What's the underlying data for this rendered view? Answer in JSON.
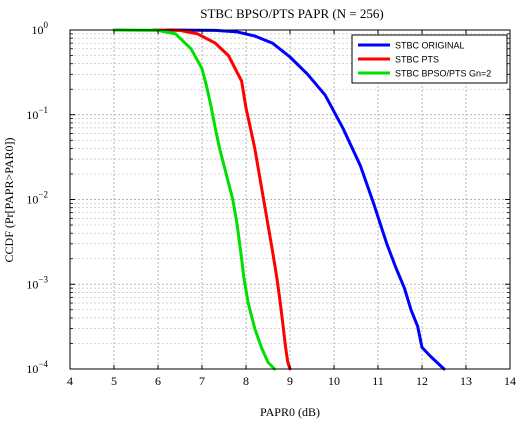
{
  "chart_data": {
    "type": "line",
    "title": "STBC BPSO/PTS PAPR (N = 256)",
    "xlabel": "PAPR0 (dB)",
    "ylabel": "CCDF (Pr[PAPR>PAR0])",
    "xlim": [
      4,
      14
    ],
    "ylim": [
      0.0001,
      1
    ],
    "yscale": "log",
    "grid": "major-and-minor, dashed",
    "legend_position": "top-right",
    "x_ticks": [
      "4",
      "5",
      "6",
      "7",
      "8",
      "9",
      "10",
      "11",
      "12",
      "13",
      "14"
    ],
    "y_ticks": [
      {
        "base": "10",
        "exp": "0",
        "value": 1
      },
      {
        "base": "10",
        "exp": "−1",
        "value": 0.1
      },
      {
        "base": "10",
        "exp": "−2",
        "value": 0.01
      },
      {
        "base": "10",
        "exp": "−3",
        "value": 0.001
      },
      {
        "base": "10",
        "exp": "−4",
        "value": 0.0001
      }
    ],
    "series": [
      {
        "name": "STBC ORIGINAL",
        "color": "#0000ff",
        "points": [
          [
            6.2,
            1
          ],
          [
            7.3,
            0.99
          ],
          [
            7.8,
            0.95
          ],
          [
            8.2,
            0.85
          ],
          [
            8.6,
            0.7
          ],
          [
            9.0,
            0.48
          ],
          [
            9.4,
            0.3
          ],
          [
            9.8,
            0.17
          ],
          [
            10.2,
            0.07
          ],
          [
            10.6,
            0.025
          ],
          [
            10.9,
            0.009
          ],
          [
            11.2,
            0.003
          ],
          [
            11.4,
            0.0016
          ],
          [
            11.6,
            0.0009
          ],
          [
            11.75,
            0.0005
          ],
          [
            11.9,
            0.00032
          ],
          [
            12.0,
            0.00018
          ],
          [
            12.2,
            0.00014
          ],
          [
            12.5,
            0.0001
          ]
        ]
      },
      {
        "name": "STBC PTS",
        "color": "#ff0000",
        "points": [
          [
            5.9,
            1
          ],
          [
            6.5,
            0.99
          ],
          [
            6.9,
            0.9
          ],
          [
            7.3,
            0.7
          ],
          [
            7.6,
            0.5
          ],
          [
            7.9,
            0.25
          ],
          [
            8.0,
            0.12
          ],
          [
            8.1,
            0.07
          ],
          [
            8.2,
            0.04
          ],
          [
            8.3,
            0.02
          ],
          [
            8.4,
            0.01
          ],
          [
            8.5,
            0.005
          ],
          [
            8.6,
            0.0025
          ],
          [
            8.7,
            0.0012
          ],
          [
            8.78,
            0.0006
          ],
          [
            8.85,
            0.0003
          ],
          [
            8.9,
            0.00018
          ],
          [
            8.95,
            0.00012
          ],
          [
            9.0,
            0.0001
          ]
        ]
      },
      {
        "name": "STBC BPSO/PTS Gn=2",
        "color": "#00e000",
        "points": [
          [
            5.0,
            1
          ],
          [
            6.0,
            0.99
          ],
          [
            6.4,
            0.9
          ],
          [
            6.75,
            0.6
          ],
          [
            7.0,
            0.35
          ],
          [
            7.1,
            0.22
          ],
          [
            7.2,
            0.13
          ],
          [
            7.3,
            0.07
          ],
          [
            7.4,
            0.04
          ],
          [
            7.55,
            0.02
          ],
          [
            7.7,
            0.01
          ],
          [
            7.8,
            0.005
          ],
          [
            7.9,
            0.002
          ],
          [
            7.95,
            0.0012
          ],
          [
            8.05,
            0.0006
          ],
          [
            8.2,
            0.0003
          ],
          [
            8.35,
            0.00018
          ],
          [
            8.5,
            0.00012
          ],
          [
            8.65,
            0.0001
          ]
        ]
      }
    ]
  }
}
